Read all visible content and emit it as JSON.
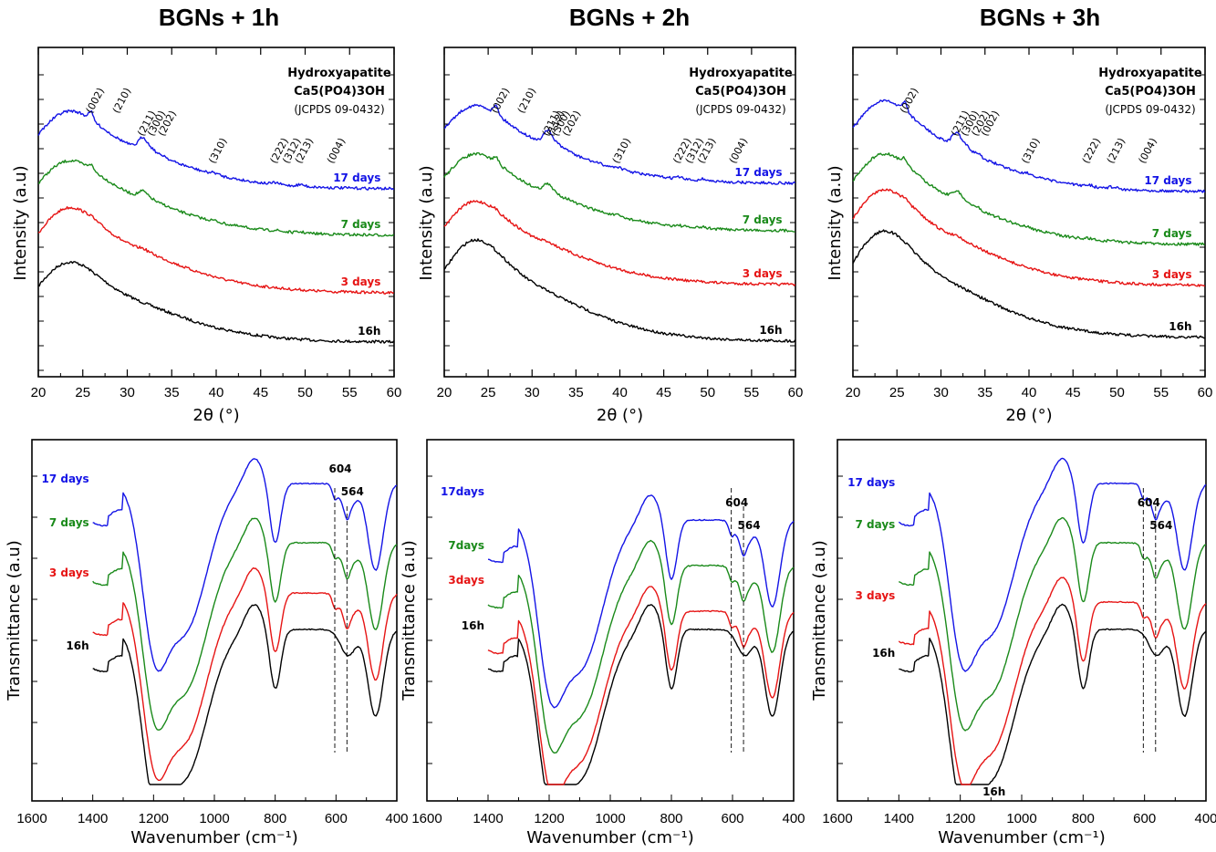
{
  "titles": [
    "BGNs + 1h",
    "BGNs + 2h",
    "BGNs + 3h"
  ],
  "colors": {
    "17 days": "#1414e6",
    "7 days": "#1a8a1a",
    "3 days": "#e61414",
    "16h": "#000000"
  },
  "xrd": {
    "xlabel": "2θ (°)",
    "ylabel": "Intensity (a.u)",
    "xticks": [
      20,
      25,
      30,
      35,
      40,
      45,
      50,
      55,
      60
    ],
    "reference": {
      "name": "Hydroxyapatite",
      "formula": "Ca5(PO4)3OH",
      "card": "(JCPDS 09-0432)"
    }
  },
  "ftir": {
    "xlabel": "Wavenumber (cm⁻¹)",
    "ylabel": "Transmittance (a.u)",
    "xticks": [
      1600,
      1400,
      1200,
      1000,
      800,
      600,
      400
    ],
    "bands": [
      "604",
      "564"
    ]
  },
  "chart_data": [
    {
      "type": "line",
      "panel": "XRD BGNs + 1h",
      "title": "BGNs + 1h",
      "xlabel": "2θ (°)",
      "ylabel": "Intensity (a.u)",
      "xlim": [
        20,
        60
      ],
      "series": [
        "16h",
        "3 days",
        "7 days",
        "17 days"
      ],
      "peak_labels": [
        [
          "(002)",
          26
        ],
        [
          "(210)",
          29
        ],
        [
          "(211)",
          31.8
        ],
        [
          "(300)",
          32.9
        ],
        [
          "(202)",
          34.1
        ],
        [
          "(310)",
          39.8
        ],
        [
          "(222)",
          46.7
        ],
        [
          "(312)",
          48.1
        ],
        [
          "(213)",
          49.5
        ],
        [
          "(004)",
          53.1
        ]
      ]
    },
    {
      "type": "line",
      "panel": "XRD BGNs + 2h",
      "title": "BGNs + 2h",
      "xlabel": "2θ (°)",
      "ylabel": "Intensity (a.u)",
      "xlim": [
        20,
        60
      ],
      "series": [
        "16h",
        "3 days",
        "7 days",
        "17 days"
      ],
      "peak_labels": [
        [
          "(002)",
          26
        ],
        [
          "(210)",
          29
        ],
        [
          "(211)",
          31.8
        ],
        [
          "(112)",
          32.3
        ],
        [
          "(300)",
          32.9
        ],
        [
          "(202)",
          34.1
        ],
        [
          "(310)",
          39.8
        ],
        [
          "(222)",
          46.7
        ],
        [
          "(312)",
          48.1
        ],
        [
          "(213)",
          49.5
        ],
        [
          "(004)",
          53.1
        ]
      ]
    },
    {
      "type": "line",
      "panel": "XRD BGNs + 3h",
      "title": "BGNs + 3h",
      "xlabel": "2θ (°)",
      "ylabel": "Intensity (a.u)",
      "xlim": [
        20,
        60
      ],
      "series": [
        "16h",
        "3 days",
        "7 days",
        "17 days"
      ],
      "peak_labels": [
        [
          "(002)",
          26
        ],
        [
          "(211)",
          31.8
        ],
        [
          "(300)",
          32.9
        ],
        [
          "(202)",
          34.1
        ],
        [
          "(002)",
          35.2
        ],
        [
          "(310)",
          39.8
        ],
        [
          "(222)",
          46.7
        ],
        [
          "(213)",
          49.5
        ],
        [
          "(004)",
          53.1
        ]
      ]
    },
    {
      "type": "line",
      "panel": "FTIR BGNs + 1h",
      "xlabel": "Wavenumber (cm⁻¹)",
      "ylabel": "Transmittance (a.u)",
      "xlim": [
        1600,
        400
      ],
      "series": [
        "16h",
        "3 days",
        "7 days",
        "17 days"
      ],
      "bands": [
        604,
        564
      ]
    },
    {
      "type": "line",
      "panel": "FTIR BGNs + 2h",
      "xlabel": "Wavenumber (cm⁻¹)",
      "ylabel": "Transmittance (a.u)",
      "xlim": [
        1600,
        400
      ],
      "series": [
        "16h",
        "3days",
        "7days",
        "17days"
      ],
      "bands": [
        604,
        564
      ]
    },
    {
      "type": "line",
      "panel": "FTIR BGNs + 3h",
      "xlabel": "Wavenumber (cm⁻¹)",
      "ylabel": "Transmittance (a.u)",
      "xlim": [
        1600,
        400
      ],
      "series": [
        "16h",
        "3 days",
        "7 days",
        "17 days"
      ],
      "bands": [
        604,
        564
      ],
      "extra_label": "16h"
    }
  ]
}
